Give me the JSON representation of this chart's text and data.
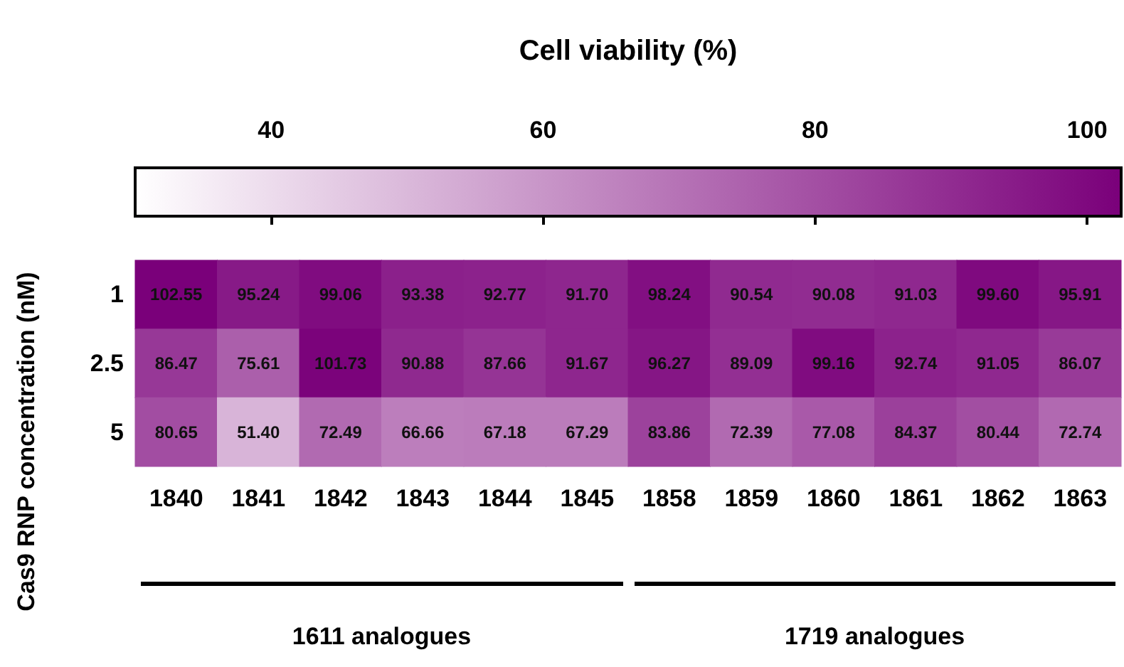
{
  "chart_data": {
    "type": "heatmap",
    "clabel": "Cell viability (%)",
    "ylabel": "Cas9 RNP concentration (nM)",
    "categories": [
      "1840",
      "1841",
      "1842",
      "1843",
      "1844",
      "1845",
      "1858",
      "1859",
      "1860",
      "1861",
      "1862",
      "1863"
    ],
    "y_categories": [
      "1",
      "2.5",
      "5"
    ],
    "cells": [
      [
        102.55,
        95.24,
        99.06,
        93.38,
        92.77,
        91.7,
        98.24,
        90.54,
        90.08,
        91.03,
        99.6,
        95.91
      ],
      [
        86.47,
        75.61,
        101.73,
        90.88,
        87.66,
        91.67,
        96.27,
        89.09,
        99.16,
        92.74,
        91.05,
        86.07
      ],
      [
        80.65,
        51.4,
        72.49,
        66.66,
        67.18,
        67.29,
        83.86,
        72.39,
        77.08,
        84.37,
        80.44,
        72.74
      ]
    ],
    "cell_labels": [
      [
        "102.55",
        "95.24",
        "99.06",
        "93.38",
        "92.77",
        "91.70",
        "98.24",
        "90.54",
        "90.08",
        "91.03",
        "99.60",
        "95.91"
      ],
      [
        "86.47",
        "75.61",
        "101.73",
        "90.88",
        "87.66",
        "91.67",
        "96.27",
        "89.09",
        "99.16",
        "92.74",
        "91.05",
        "86.07"
      ],
      [
        "80.65",
        "51.40",
        "72.49",
        "66.66",
        "67.18",
        "67.29",
        "83.86",
        "72.39",
        "77.08",
        "84.37",
        "80.44",
        "72.74"
      ]
    ],
    "clim": [
      30,
      102.5
    ],
    "cticks": [
      40,
      60,
      80,
      100
    ],
    "annotations": [
      "1611 analogues",
      "1719 analogues"
    ]
  }
}
